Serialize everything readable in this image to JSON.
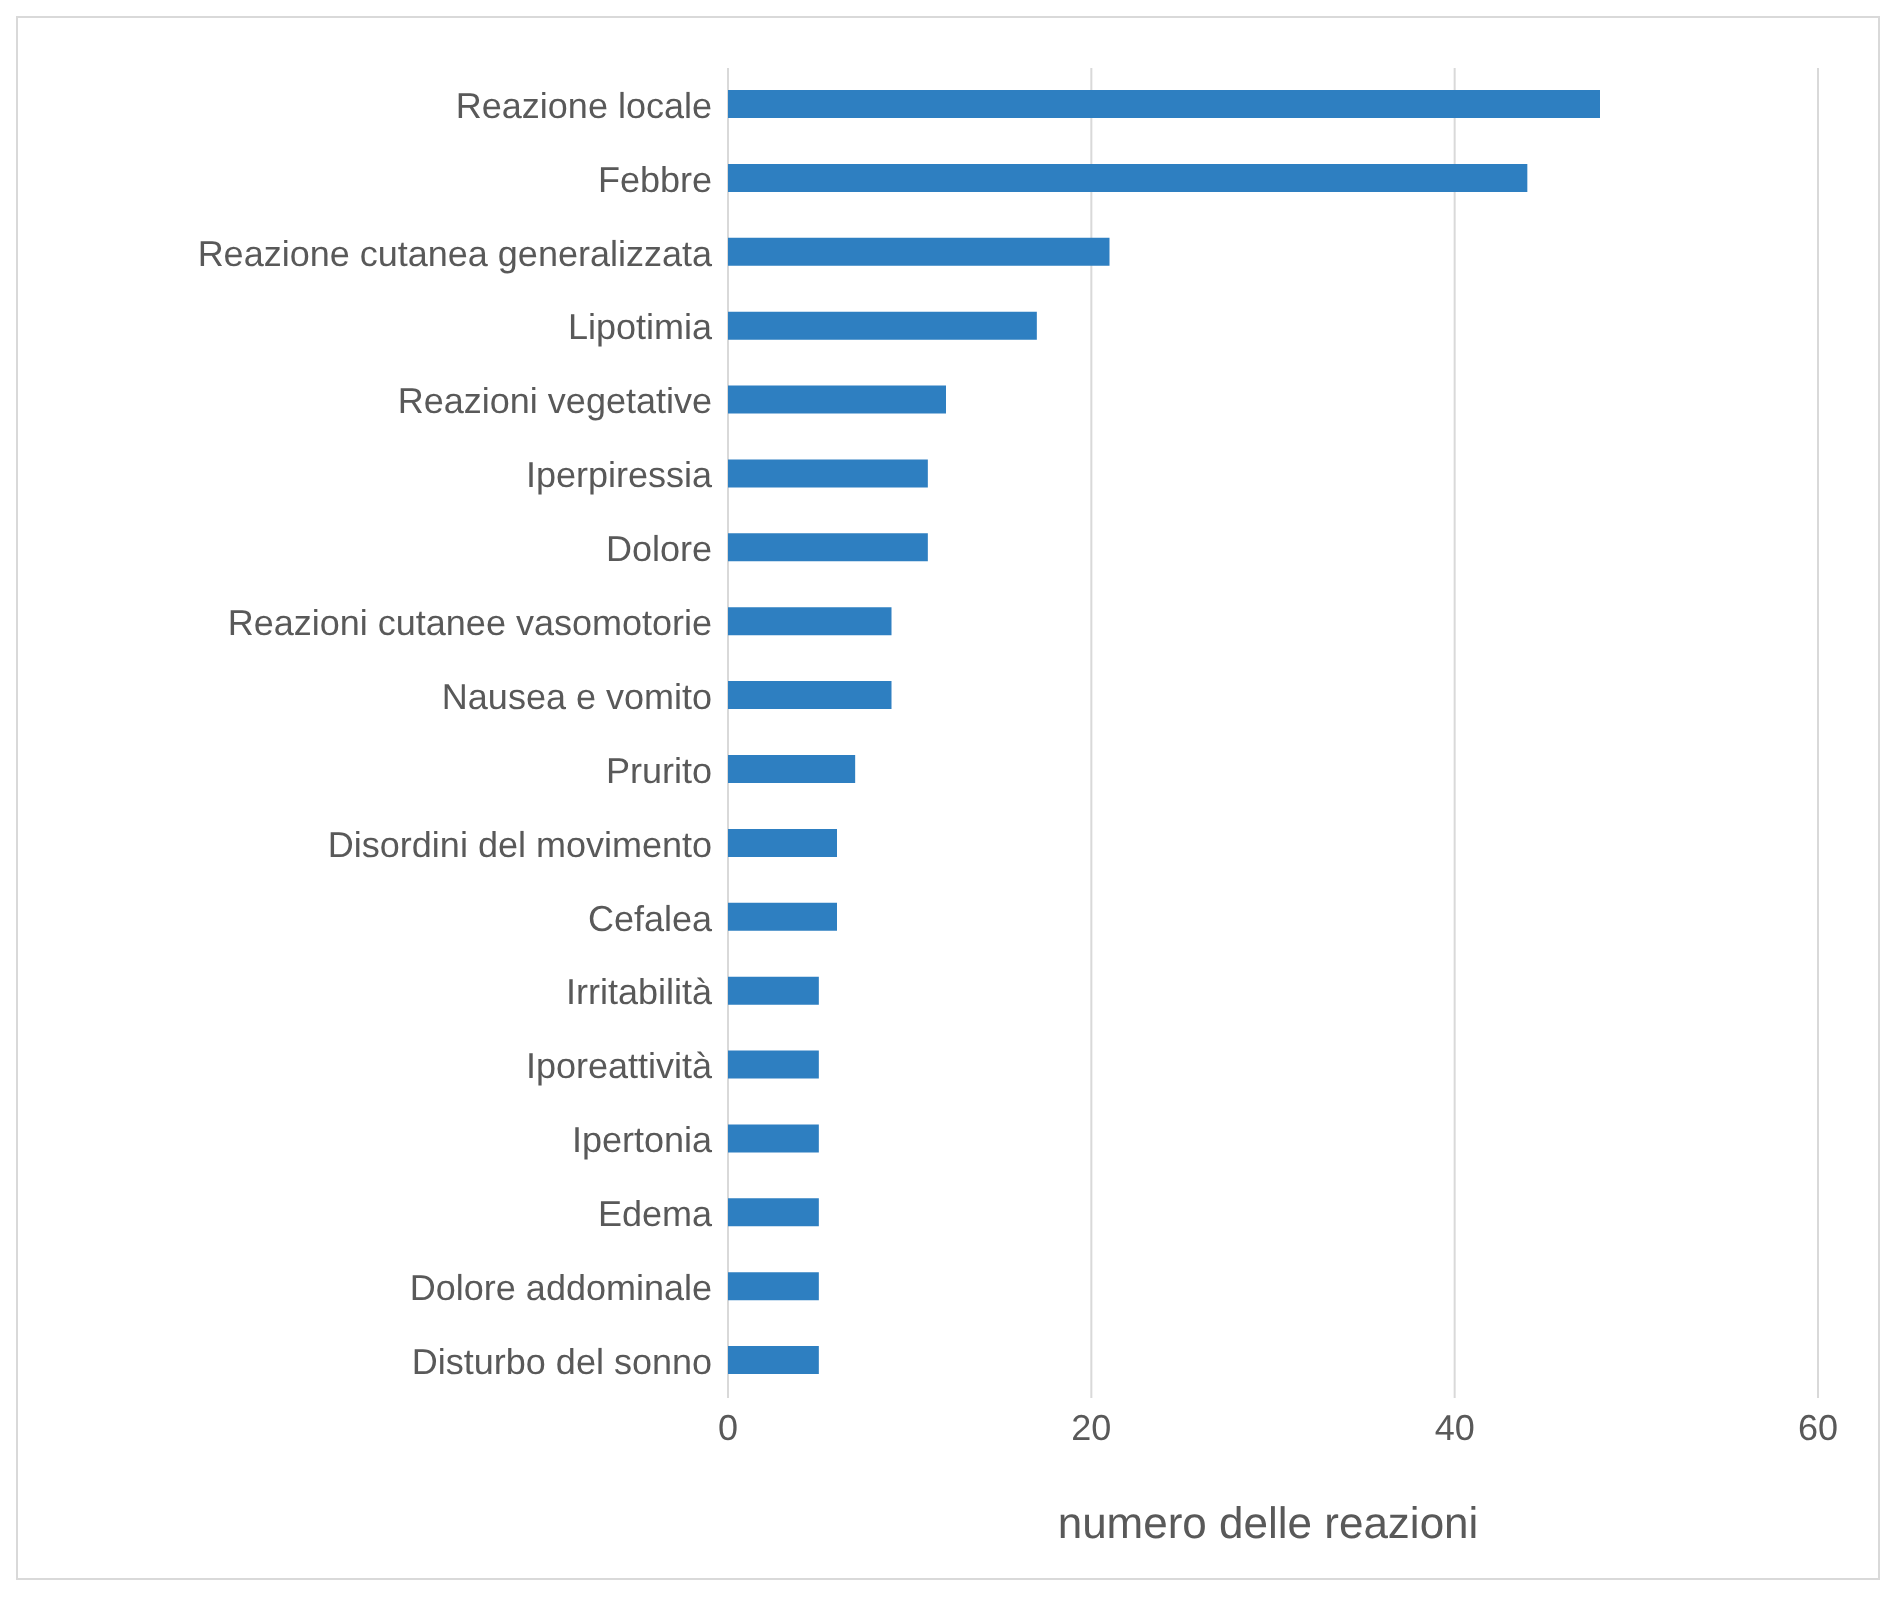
{
  "chart_data": {
    "type": "bar",
    "orientation": "horizontal",
    "xlabel": "numero delle reazioni",
    "categories": [
      "Reazione locale",
      "Febbre",
      "Reazione cutanea generalizzata",
      "Lipotimia",
      "Reazioni vegetative",
      "Iperpiressia",
      "Dolore",
      "Reazioni cutanee vasomotorie",
      "Nausea e vomito",
      "Prurito",
      "Disordini del movimento",
      "Cefalea",
      "Irritabilità",
      "Iporeattività",
      "Ipertonia",
      "Edema",
      "Dolore addominale",
      "Disturbo del sonno"
    ],
    "values": [
      48,
      44,
      21,
      17,
      12,
      11,
      11,
      9,
      9,
      7,
      6,
      6,
      5,
      5,
      5,
      5,
      5,
      5
    ],
    "color": "#2e7fc1",
    "xlim": [
      0,
      60
    ],
    "xticks": [
      0,
      20,
      40,
      60
    ],
    "grid": "x",
    "legend": false
  }
}
